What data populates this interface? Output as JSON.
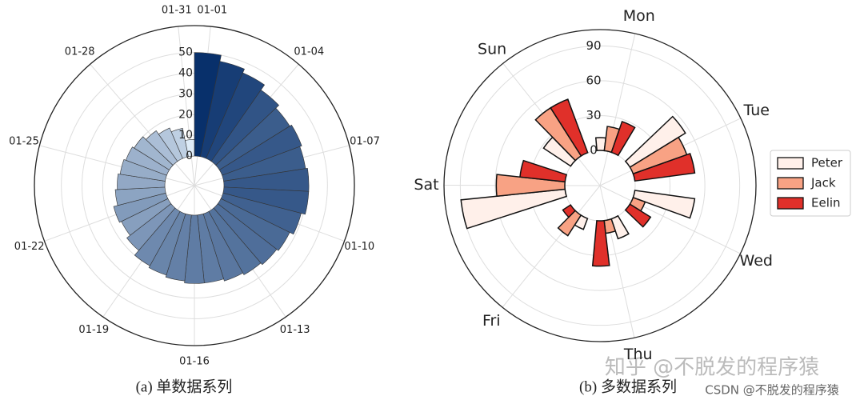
{
  "chart_data": [
    {
      "type": "polar-bar",
      "caption": "(a)  单数据系列",
      "categories": [
        "01-01",
        null,
        null,
        "01-04",
        null,
        null,
        "01-07",
        null,
        null,
        "01-10",
        null,
        null,
        "01-13",
        null,
        null,
        "01-16",
        null,
        null,
        "01-19",
        null,
        null,
        "01-22",
        null,
        null,
        "01-25",
        null,
        null,
        "01-28",
        null,
        null,
        "01-31"
      ],
      "values": [
        50,
        47,
        45,
        42,
        40,
        41,
        40,
        41,
        41,
        39,
        37,
        36,
        35,
        34,
        33,
        33,
        32,
        31,
        30,
        27,
        25,
        26,
        24,
        23,
        22,
        21,
        20,
        18,
        16,
        14,
        8
      ],
      "color_range": [
        "#deebf7",
        "#08306b"
      ],
      "ylim": [
        0,
        63
      ],
      "yticks": [
        0,
        10,
        20,
        30,
        40,
        50
      ],
      "grid": true
    },
    {
      "type": "polar-grouped-bar",
      "caption": "(b)  多数据系列",
      "categories": [
        "Mon",
        "Tue",
        "Wed",
        "Thu",
        "Fri",
        "Sat",
        "Sun"
      ],
      "series": [
        {
          "name": "Peter",
          "color": "#fff0ea",
          "values": [
            11,
            56,
            52,
            18,
            10,
            90,
            28
          ]
        },
        {
          "name": "Jack",
          "color": "#f8a284",
          "values": [
            21,
            49,
            11,
            11,
            21,
            59,
            49
          ]
        },
        {
          "name": "Eelin",
          "color": "#e0302a",
          "values": [
            28,
            52,
            21,
            39,
            8,
            39,
            49
          ]
        }
      ],
      "ylim": [
        0,
        104
      ],
      "yticks": [
        0,
        30,
        60,
        90
      ],
      "grid": true,
      "legend": "right"
    }
  ],
  "watermarks": [
    "知乎 @不脱发的程序猿",
    "CSDN @不脱发的程序猿"
  ]
}
